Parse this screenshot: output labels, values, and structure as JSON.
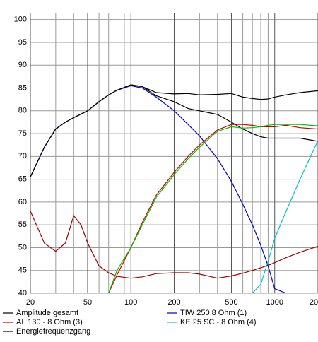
{
  "chart_data": {
    "type": "line",
    "xscale": "log",
    "grid": true,
    "x": [
      20,
      25,
      30,
      35,
      40,
      45,
      50,
      60,
      70,
      80,
      100,
      120,
      150,
      200,
      250,
      300,
      400,
      500,
      600,
      700,
      800,
      900,
      1000,
      1200,
      1500,
      2000
    ],
    "xlim": [
      20,
      2000
    ],
    "ylim": [
      40,
      101.5
    ],
    "xticks": [
      20,
      50,
      100,
      200,
      500,
      1000,
      {
        "value": 2000,
        "label": "20"
      }
    ],
    "xminor_ticks": [
      30,
      40,
      60,
      70,
      80,
      90,
      300,
      400,
      600,
      700,
      800,
      900
    ],
    "yticks": [
      40,
      45,
      50,
      55,
      60,
      65,
      70,
      75,
      80,
      85,
      90,
      95,
      100
    ],
    "series": [
      {
        "name": "Amplitude gesamt",
        "color": "#000000",
        "values": [
          65.5,
          72,
          76,
          77.5,
          78.5,
          79.3,
          80,
          82,
          83.5,
          84.5,
          85.7,
          85.3,
          83.3,
          82,
          80.5,
          80,
          79.2,
          77.5,
          76,
          75,
          74.3,
          74,
          74,
          74,
          74,
          73.3
        ]
      },
      {
        "name": "TIW 250 8 Ohm (1)",
        "color": "#0000c0",
        "values": [
          65.5,
          72,
          76,
          77.5,
          78.5,
          79.3,
          80,
          82,
          83.5,
          84.5,
          85.5,
          85,
          83,
          80,
          77,
          74.5,
          69.5,
          64.5,
          59.5,
          55,
          50.5,
          46,
          41,
          40,
          40,
          40
        ]
      },
      {
        "name": "AL 130 - 8 Ohm (3)",
        "color": "#d00000",
        "values": [
          null,
          null,
          null,
          null,
          null,
          null,
          null,
          null,
          40,
          44,
          50,
          55.5,
          61.5,
          66.5,
          70,
          72.5,
          75.8,
          77,
          77,
          76.8,
          76.5,
          76.5,
          76.5,
          76.8,
          76.3,
          76
        ]
      },
      {
        "name": "KE 25 SC - 8 Ohm    (4)",
        "color": "#00c0d0",
        "values": [
          40,
          40,
          40,
          40,
          40,
          40,
          40,
          40,
          40,
          40,
          40,
          40,
          40,
          40,
          40,
          40,
          40,
          40,
          40,
          40,
          42,
          47,
          52,
          58,
          65,
          73.5
        ]
      },
      {
        "name": "Energiefrequenzgang",
        "color": "#000000",
        "values": [
          65.5,
          72,
          76,
          77.5,
          78.5,
          79.3,
          80,
          82,
          83.5,
          84.5,
          85.7,
          85.3,
          84,
          83.7,
          83.8,
          83.5,
          83.6,
          83.8,
          83,
          82.7,
          82.5,
          82.6,
          83,
          83.5,
          84,
          84.4
        ]
      },
      {
        "color": "#a00000",
        "values": [
          58,
          51,
          49.2,
          51,
          57,
          55,
          51,
          46,
          44.5,
          43.7,
          43.3,
          43.6,
          44.3,
          44.5,
          44.5,
          44.2,
          43.3,
          43.8,
          44.4,
          45,
          45.6,
          46.1,
          46.7,
          47.8,
          49,
          50.3
        ]
      },
      {
        "color": "#00c000",
        "values": [
          40,
          40,
          40,
          40,
          40,
          40,
          40,
          40,
          40,
          45,
          50,
          55,
          61,
          66,
          69.5,
          72,
          75.5,
          76.5,
          76.2,
          76.3,
          76.5,
          76.8,
          77,
          77,
          77,
          76.7
        ]
      }
    ]
  }
}
